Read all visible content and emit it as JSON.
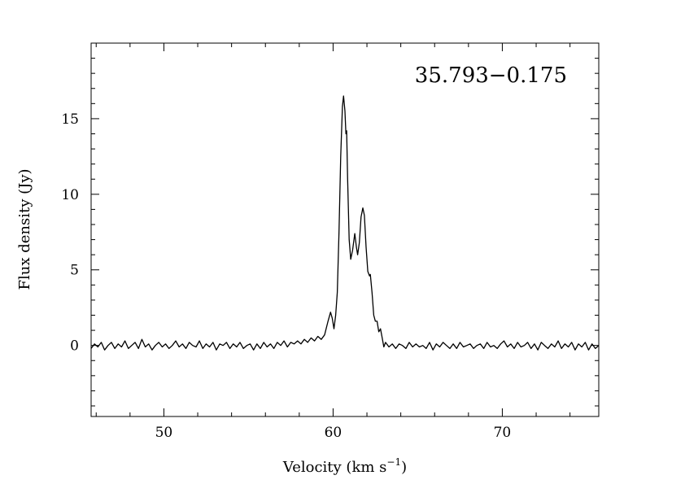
{
  "chart_data": {
    "type": "line",
    "title": "35.793−0.175",
    "xlabel": "Velocity (km s",
    "xlabel_sup": "−1",
    "xlabel_end": ")",
    "ylabel": "Flux density (Jy)",
    "xlim": [
      45.7,
      75.7
    ],
    "ylim": [
      -4.7,
      20
    ],
    "x_major_ticks": [
      50,
      60,
      70
    ],
    "x_tick_labels": [
      "50",
      "60",
      "70"
    ],
    "x_minor_step": 2,
    "y_major_ticks": [
      0,
      5,
      10,
      15
    ],
    "y_tick_labels": [
      "0",
      "5",
      "10",
      "15"
    ],
    "y_minor_step": 1,
    "grid": false,
    "line_color": "#000000",
    "series": [
      {
        "x": [
          45.7,
          45.9,
          46.1,
          46.3,
          46.5,
          46.7,
          46.9,
          47.1,
          47.3,
          47.5,
          47.7,
          47.9,
          48.1,
          48.3,
          48.5,
          48.7,
          48.9,
          49.1,
          49.3,
          49.5,
          49.7,
          49.9,
          50.1,
          50.3,
          50.5,
          50.7,
          50.9,
          51.1,
          51.3,
          51.5,
          51.7,
          51.9,
          52.1,
          52.3,
          52.5,
          52.7,
          52.9,
          53.1,
          53.3,
          53.5,
          53.7,
          53.9,
          54.1,
          54.3,
          54.5,
          54.7,
          54.9,
          55.1,
          55.3,
          55.5,
          55.7,
          55.9,
          56.1,
          56.3,
          56.5,
          56.7,
          56.9,
          57.1,
          57.3,
          57.5,
          57.7,
          57.9,
          58.1,
          58.3,
          58.5,
          58.7,
          58.9,
          59.1,
          59.3,
          59.5,
          59.7,
          59.85,
          59.95,
          60.05,
          60.15,
          60.25,
          60.35,
          60.45,
          60.55,
          60.62,
          60.7,
          60.76,
          60.8,
          60.86,
          60.95,
          61.04,
          61.15,
          61.28,
          61.38,
          61.45,
          61.55,
          61.65,
          61.76,
          61.85,
          61.95,
          62.05,
          62.15,
          62.2,
          62.3,
          62.4,
          62.5,
          62.6,
          62.7,
          62.8,
          62.9,
          63.0,
          63.1,
          63.3,
          63.5,
          63.7,
          63.9,
          64.1,
          64.3,
          64.5,
          64.7,
          64.9,
          65.1,
          65.3,
          65.5,
          65.7,
          65.9,
          66.1,
          66.3,
          66.5,
          66.7,
          66.9,
          67.1,
          67.3,
          67.5,
          67.7,
          67.9,
          68.1,
          68.3,
          68.5,
          68.7,
          68.9,
          69.1,
          69.3,
          69.5,
          69.7,
          69.9,
          70.1,
          70.3,
          70.5,
          70.7,
          70.9,
          71.1,
          71.3,
          71.5,
          71.7,
          71.9,
          72.1,
          72.3,
          72.5,
          72.7,
          72.9,
          73.1,
          73.3,
          73.5,
          73.7,
          73.9,
          74.1,
          74.3,
          74.5,
          74.7,
          74.9,
          75.1,
          75.3,
          75.5,
          75.7
        ],
        "y": [
          -0.2,
          0.1,
          -0.1,
          0.2,
          -0.3,
          0.0,
          0.2,
          -0.2,
          0.1,
          -0.1,
          0.3,
          -0.2,
          0.0,
          0.2,
          -0.2,
          0.4,
          -0.1,
          0.1,
          -0.3,
          0.0,
          0.2,
          -0.1,
          0.1,
          -0.2,
          0.0,
          0.3,
          -0.1,
          0.1,
          -0.2,
          0.2,
          0.0,
          -0.1,
          0.3,
          -0.2,
          0.1,
          -0.1,
          0.2,
          -0.3,
          0.1,
          0.0,
          0.2,
          -0.2,
          0.1,
          -0.1,
          0.2,
          -0.2,
          0.0,
          0.1,
          -0.3,
          0.1,
          -0.2,
          0.2,
          -0.1,
          0.1,
          -0.2,
          0.2,
          0.0,
          0.3,
          -0.1,
          0.2,
          0.1,
          0.3,
          0.1,
          0.4,
          0.2,
          0.5,
          0.3,
          0.6,
          0.4,
          0.7,
          1.6,
          2.2,
          1.8,
          1.1,
          2.0,
          3.5,
          7.5,
          12.5,
          15.8,
          16.5,
          15.5,
          14.0,
          14.2,
          11.0,
          7.0,
          5.7,
          6.3,
          7.4,
          6.5,
          6.0,
          6.8,
          8.5,
          9.1,
          8.6,
          6.5,
          4.9,
          4.6,
          4.7,
          3.5,
          2.0,
          1.6,
          1.6,
          0.9,
          1.1,
          0.5,
          -0.1,
          0.2,
          -0.1,
          0.1,
          -0.2,
          0.1,
          0.0,
          -0.2,
          0.2,
          -0.1,
          0.1,
          -0.1,
          0.0,
          -0.2,
          0.2,
          -0.3,
          0.1,
          -0.1,
          0.2,
          0.0,
          -0.2,
          0.1,
          -0.2,
          0.2,
          -0.1,
          0.0,
          0.1,
          -0.2,
          0.0,
          0.1,
          -0.2,
          0.2,
          -0.1,
          0.0,
          -0.2,
          0.1,
          0.3,
          -0.1,
          0.1,
          -0.2,
          0.2,
          -0.1,
          0.0,
          0.2,
          -0.2,
          0.1,
          -0.3,
          0.2,
          0.0,
          -0.2,
          0.1,
          -0.1,
          0.3,
          -0.2,
          0.1,
          -0.1,
          0.2,
          -0.3,
          0.1,
          -0.1,
          0.2,
          -0.3,
          0.1,
          -0.2,
          0.0
        ]
      }
    ]
  }
}
